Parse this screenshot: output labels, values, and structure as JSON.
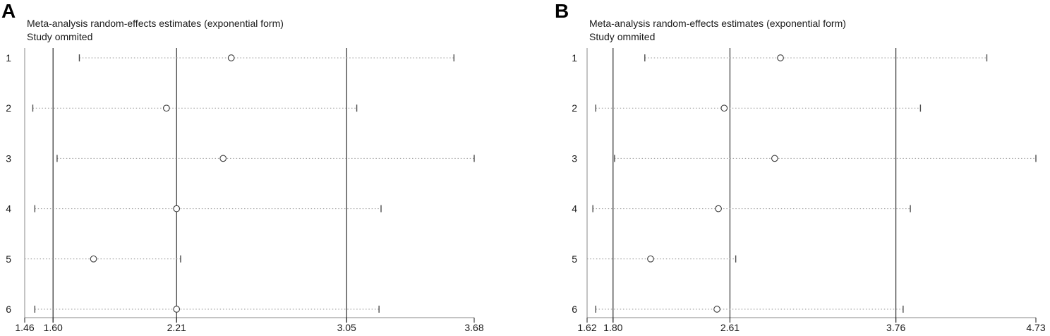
{
  "figure": {
    "panels": [
      {
        "label": "A",
        "title_line1": "Meta-analysis random-effects estimates (exponential form)",
        "title_line2": "Study ommited"
      },
      {
        "label": "B",
        "title_line1": "Meta-analysis random-effects estimates (exponential form)",
        "title_line2": "Study ommited"
      }
    ]
  },
  "colors": {
    "frame": "#8a8a8a",
    "reference_line": "#1a1a1a",
    "ci_dotted": "#9a9a9a",
    "cap": "#4d4d4d",
    "marker_stroke": "#3a3a3a",
    "marker_fill": "#ffffff",
    "text": "#1a1a1a"
  },
  "chart_data": [
    {
      "type": "scatter",
      "subtype": "leave-one-out-sensitivity-forest",
      "panel": "A",
      "title": "Meta-analysis random-effects estimates (exponential form)",
      "subtitle": "Study ommited",
      "xlim": [
        1.46,
        3.68
      ],
      "x_tick_labels": [
        "1.46",
        "1.60",
        "2.21",
        "3.05",
        "3.68"
      ],
      "overall_estimate": 2.21,
      "overall_ci": [
        1.6,
        3.05
      ],
      "reference_lines": [
        1.6,
        2.21,
        3.05
      ],
      "y_axis": "study omitted (1-6)",
      "grid": false,
      "legend": false,
      "studies": [
        {
          "study": "1",
          "estimate": 2.48,
          "ci_low": 1.73,
          "ci_high": 3.58,
          "cap_low": true
        },
        {
          "study": "2",
          "estimate": 2.16,
          "ci_low": 1.5,
          "ci_high": 3.1,
          "cap_low": true
        },
        {
          "study": "3",
          "estimate": 2.44,
          "ci_low": 1.62,
          "ci_high": 3.68,
          "cap_low": true
        },
        {
          "study": "4",
          "estimate": 2.21,
          "ci_low": 1.51,
          "ci_high": 3.22,
          "cap_low": true
        },
        {
          "study": "5",
          "estimate": 1.8,
          "ci_low": 1.46,
          "ci_high": 2.23,
          "cap_low": false
        },
        {
          "study": "6",
          "estimate": 2.21,
          "ci_low": 1.51,
          "ci_high": 3.21,
          "cap_low": true
        }
      ]
    },
    {
      "type": "scatter",
      "subtype": "leave-one-out-sensitivity-forest",
      "panel": "B",
      "title": "Meta-analysis random-effects estimates (exponential form)",
      "subtitle": "Study ommited",
      "xlim": [
        1.62,
        4.73
      ],
      "x_tick_labels": [
        "1.62",
        "1.80",
        "2.61",
        "3.76",
        "4.73"
      ],
      "overall_estimate": 2.61,
      "overall_ci": [
        1.8,
        3.76
      ],
      "reference_lines": [
        1.8,
        2.61,
        3.76
      ],
      "y_axis": "study omitted (1-6)",
      "grid": false,
      "legend": false,
      "studies": [
        {
          "study": "1",
          "estimate": 2.96,
          "ci_low": 2.02,
          "ci_high": 4.39,
          "cap_low": true
        },
        {
          "study": "2",
          "estimate": 2.57,
          "ci_low": 1.68,
          "ci_high": 3.93,
          "cap_low": true
        },
        {
          "study": "3",
          "estimate": 2.92,
          "ci_low": 1.81,
          "ci_high": 4.73,
          "cap_low": true
        },
        {
          "study": "4",
          "estimate": 2.53,
          "ci_low": 1.66,
          "ci_high": 3.86,
          "cap_low": true
        },
        {
          "study": "5",
          "estimate": 2.06,
          "ci_low": 1.62,
          "ci_high": 2.65,
          "cap_low": false
        },
        {
          "study": "6",
          "estimate": 2.52,
          "ci_low": 1.68,
          "ci_high": 3.81,
          "cap_low": true
        }
      ]
    }
  ]
}
